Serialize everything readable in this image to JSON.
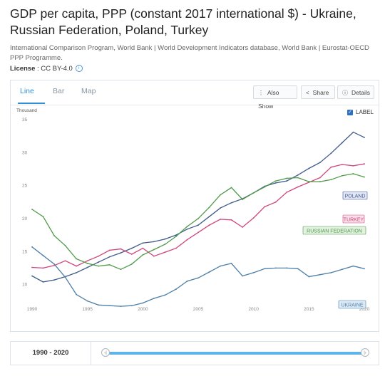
{
  "header": {
    "title": "GDP per capita, PPP (constant 2017 international $) - Ukraine, Russian Federation, Poland, Turkey",
    "source": "International Comparison Program, World Bank | World Development Indicators database, World Bank | Eurostat-OECD PPP Programme.",
    "license_label": "License",
    "license_value": " : CC BY-4.0",
    "license_icon": "info-icon"
  },
  "tabs": [
    {
      "label": "Line",
      "active": true
    },
    {
      "label": "Bar",
      "active": false
    },
    {
      "label": "Map",
      "active": false
    }
  ],
  "toolbar": {
    "also_show": "Also Show",
    "share": "Share",
    "details": "Details",
    "also_show_icon": "dots-icon",
    "share_icon": "share-icon",
    "details_icon": "info-icon"
  },
  "label_toggle": {
    "label": "LABEL",
    "checked": true
  },
  "range": {
    "text": "1990 - 2020",
    "start": "1990",
    "end": "2020"
  },
  "chart_data": {
    "type": "line",
    "unit_label": "Thousand",
    "x": [
      1990,
      1991,
      1992,
      1993,
      1994,
      1995,
      1996,
      1997,
      1998,
      1999,
      2000,
      2001,
      2002,
      2003,
      2004,
      2005,
      2006,
      2007,
      2008,
      2009,
      2010,
      2011,
      2012,
      2013,
      2014,
      2015,
      2016,
      2017,
      2018,
      2019,
      2020
    ],
    "xticks": [
      1990,
      1995,
      2000,
      2005,
      2010,
      2015,
      2020
    ],
    "yticks": [
      10,
      15,
      20,
      25,
      30,
      35
    ],
    "ylim": [
      6.5,
      35
    ],
    "xlim": [
      1990,
      2020
    ],
    "series": [
      {
        "name": "POLAND",
        "color": "#3f5a8c",
        "label_bg": "#e3e6f5",
        "values": [
          11.3,
          10.4,
          10.7,
          11.2,
          11.8,
          12.6,
          13.4,
          14.2,
          14.8,
          15.5,
          16.3,
          16.5,
          16.9,
          17.5,
          18.4,
          19.0,
          20.3,
          21.6,
          22.4,
          23.0,
          23.9,
          24.9,
          25.4,
          25.7,
          26.6,
          27.6,
          28.5,
          29.9,
          31.5,
          33.1,
          32.3
        ]
      },
      {
        "name": "TURKEY",
        "color": "#d0447c",
        "label_bg": "#f9e1ea",
        "values": [
          12.6,
          12.5,
          12.9,
          13.6,
          12.8,
          13.6,
          14.3,
          15.2,
          15.4,
          14.6,
          15.5,
          14.3,
          14.9,
          15.5,
          16.8,
          17.9,
          19.0,
          19.9,
          19.8,
          18.7,
          20.1,
          21.8,
          22.5,
          24.0,
          24.8,
          25.5,
          26.2,
          27.8,
          28.2,
          28.0,
          28.3
        ]
      },
      {
        "name": "RUSSIAN FEDERATION",
        "color": "#4e9a49",
        "label_bg": "#e2f1e0",
        "values": [
          21.4,
          20.3,
          17.4,
          15.9,
          13.9,
          13.2,
          12.8,
          13.0,
          12.3,
          13.1,
          14.5,
          15.3,
          16.1,
          17.3,
          18.8,
          20.0,
          21.7,
          23.6,
          24.7,
          22.9,
          23.9,
          24.8,
          25.7,
          26.1,
          26.2,
          25.6,
          25.6,
          25.9,
          26.5,
          26.8,
          26.3
        ]
      },
      {
        "name": "UKRAINE",
        "color": "#4d7fa8",
        "label_bg": "#dceaf6",
        "values": [
          15.7,
          14.4,
          13.1,
          11.1,
          8.5,
          7.5,
          6.9,
          6.8,
          6.7,
          6.8,
          7.2,
          7.9,
          8.4,
          9.3,
          10.5,
          11.0,
          11.9,
          12.8,
          13.2,
          11.3,
          11.8,
          12.4,
          12.5,
          12.5,
          12.4,
          11.2,
          11.5,
          11.8,
          12.3,
          12.8,
          12.4
        ]
      }
    ]
  }
}
